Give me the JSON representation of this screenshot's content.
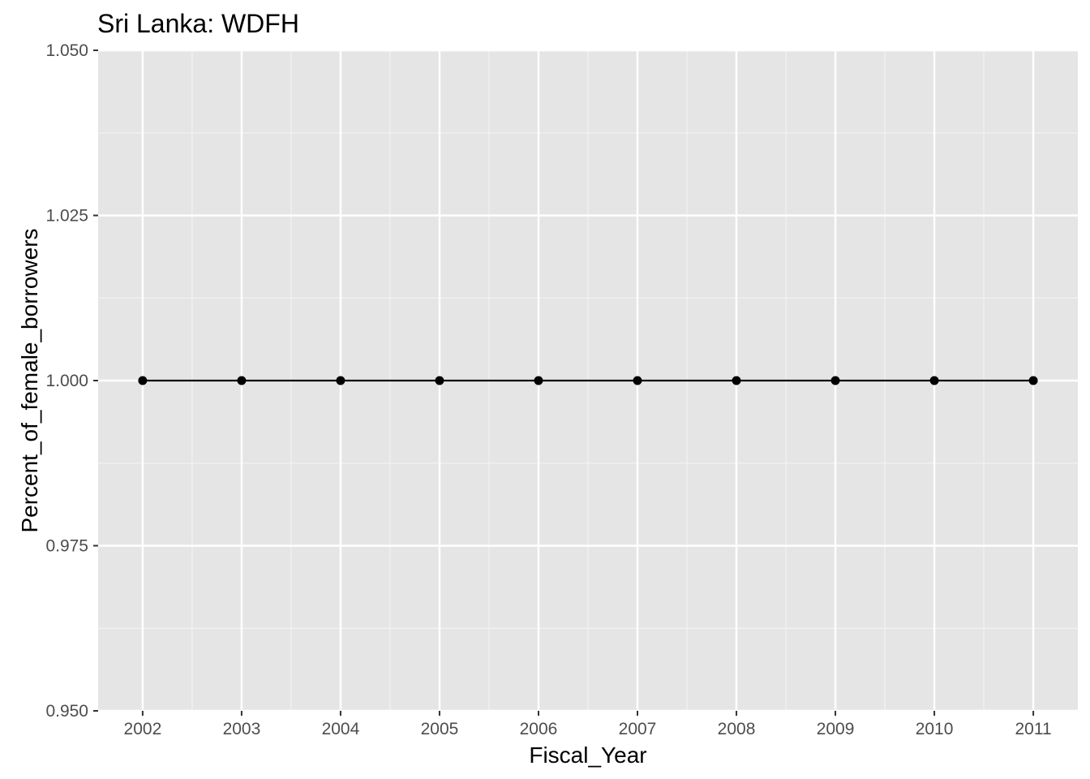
{
  "chart_data": {
    "type": "line",
    "title": "Sri Lanka:  WDFH",
    "xlabel": "Fiscal_Year",
    "ylabel": "Percent_of_female_borrowers",
    "x": [
      2002,
      2003,
      2004,
      2005,
      2006,
      2007,
      2008,
      2009,
      2010,
      2011
    ],
    "series": [
      {
        "values": [
          1.0,
          1.0,
          1.0,
          1.0,
          1.0,
          1.0,
          1.0,
          1.0,
          1.0,
          1.0
        ]
      }
    ],
    "xlim": [
      2001.55,
      2011.45
    ],
    "ylim": [
      0.95,
      1.05
    ],
    "x_ticks": [
      "2002",
      "2003",
      "2004",
      "2005",
      "2006",
      "2007",
      "2008",
      "2009",
      "2010",
      "2011"
    ],
    "y_ticks": [
      "0.950",
      "0.975",
      "1.000",
      "1.025",
      "1.050"
    ],
    "grid": true,
    "legend": "none",
    "colors": {
      "panel_background": "#e5e5e5",
      "grid_major": "#ffffff",
      "grid_minor": "#f2f2f2",
      "series": "#000000",
      "tick": "#333333"
    }
  }
}
